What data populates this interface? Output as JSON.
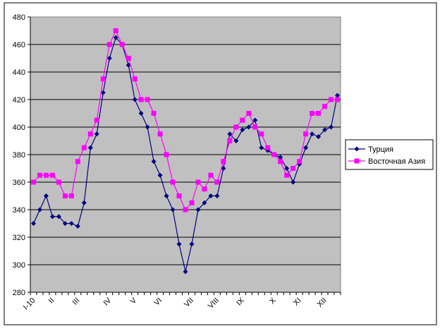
{
  "chart_data": {
    "type": "line",
    "ylim": [
      280,
      480
    ],
    "yticks": [
      280,
      300,
      320,
      340,
      360,
      380,
      400,
      420,
      440,
      460,
      480
    ],
    "grid": true,
    "legend": "right",
    "plot_background": "#c0c0c0",
    "categories": [
      "I-10",
      "",
      "",
      "II",
      "",
      "",
      "",
      "III",
      "",
      "",
      "",
      "",
      "IV",
      "",
      "",
      "",
      "V",
      "",
      "",
      "",
      "VI",
      "",
      "",
      "",
      "",
      "VII",
      "",
      "",
      "",
      "VIII",
      "",
      "",
      "",
      "IX",
      "",
      "",
      "",
      "",
      "X",
      "",
      "",
      "",
      "XI",
      "",
      "",
      "",
      "XII",
      "",
      ""
    ],
    "series": [
      {
        "name": "Турция",
        "color": "#000080",
        "marker": "diamond",
        "values": [
          330,
          340,
          350,
          335,
          335,
          330,
          330,
          328,
          345,
          385,
          395,
          425,
          450,
          465,
          460,
          445,
          420,
          410,
          400,
          375,
          365,
          350,
          340,
          315,
          295,
          315,
          340,
          345,
          350,
          350,
          370,
          395,
          390,
          398,
          400,
          405,
          385,
          383,
          380,
          378,
          370,
          360,
          373,
          385,
          395,
          393,
          398,
          400,
          423
        ]
      },
      {
        "name": "Восточная Азия",
        "color": "#ff00ff",
        "marker": "square",
        "values": [
          360,
          365,
          365,
          365,
          360,
          350,
          350,
          375,
          385,
          395,
          405,
          435,
          460,
          470,
          460,
          450,
          435,
          420,
          420,
          410,
          395,
          380,
          360,
          350,
          340,
          345,
          360,
          355,
          365,
          360,
          375,
          390,
          400,
          405,
          410,
          400,
          395,
          385,
          380,
          375,
          365,
          370,
          375,
          395,
          410,
          410,
          415,
          420,
          420
        ]
      }
    ]
  }
}
